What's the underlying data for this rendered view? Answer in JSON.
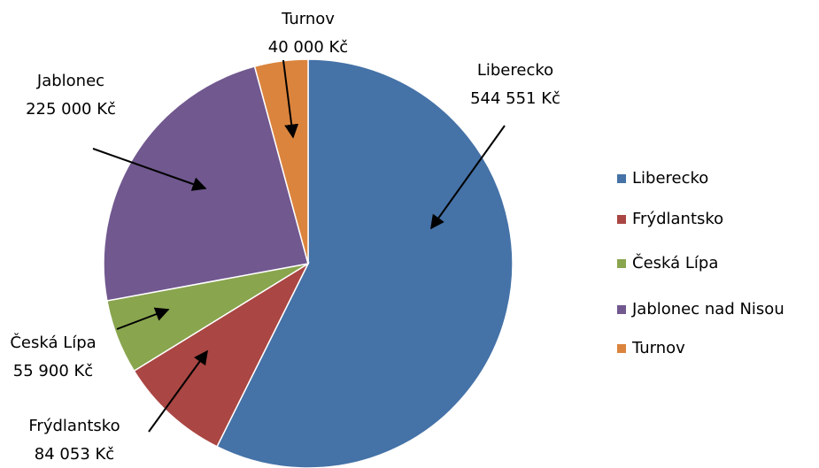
{
  "chart_data": {
    "type": "pie",
    "categories": [
      "Liberecko",
      "Frýdlantsko",
      "Česká Lípa",
      "Jablonec nad Nisou",
      "Turnov"
    ],
    "values": [
      544551,
      84053,
      55900,
      225000,
      40000
    ],
    "label_names": [
      "Liberecko",
      "Frýdlantsko",
      "Česká Lípa",
      "Jablonec",
      "Turnov"
    ],
    "value_labels": [
      "544 551 Kč",
      "84 053 Kč",
      "55 900 Kč",
      "225 000 Kč",
      "40 000 Kč"
    ],
    "colors": [
      "#4572a7",
      "#aa4643",
      "#89a54e",
      "#71588f",
      "#db843d"
    ],
    "legend": "right"
  }
}
